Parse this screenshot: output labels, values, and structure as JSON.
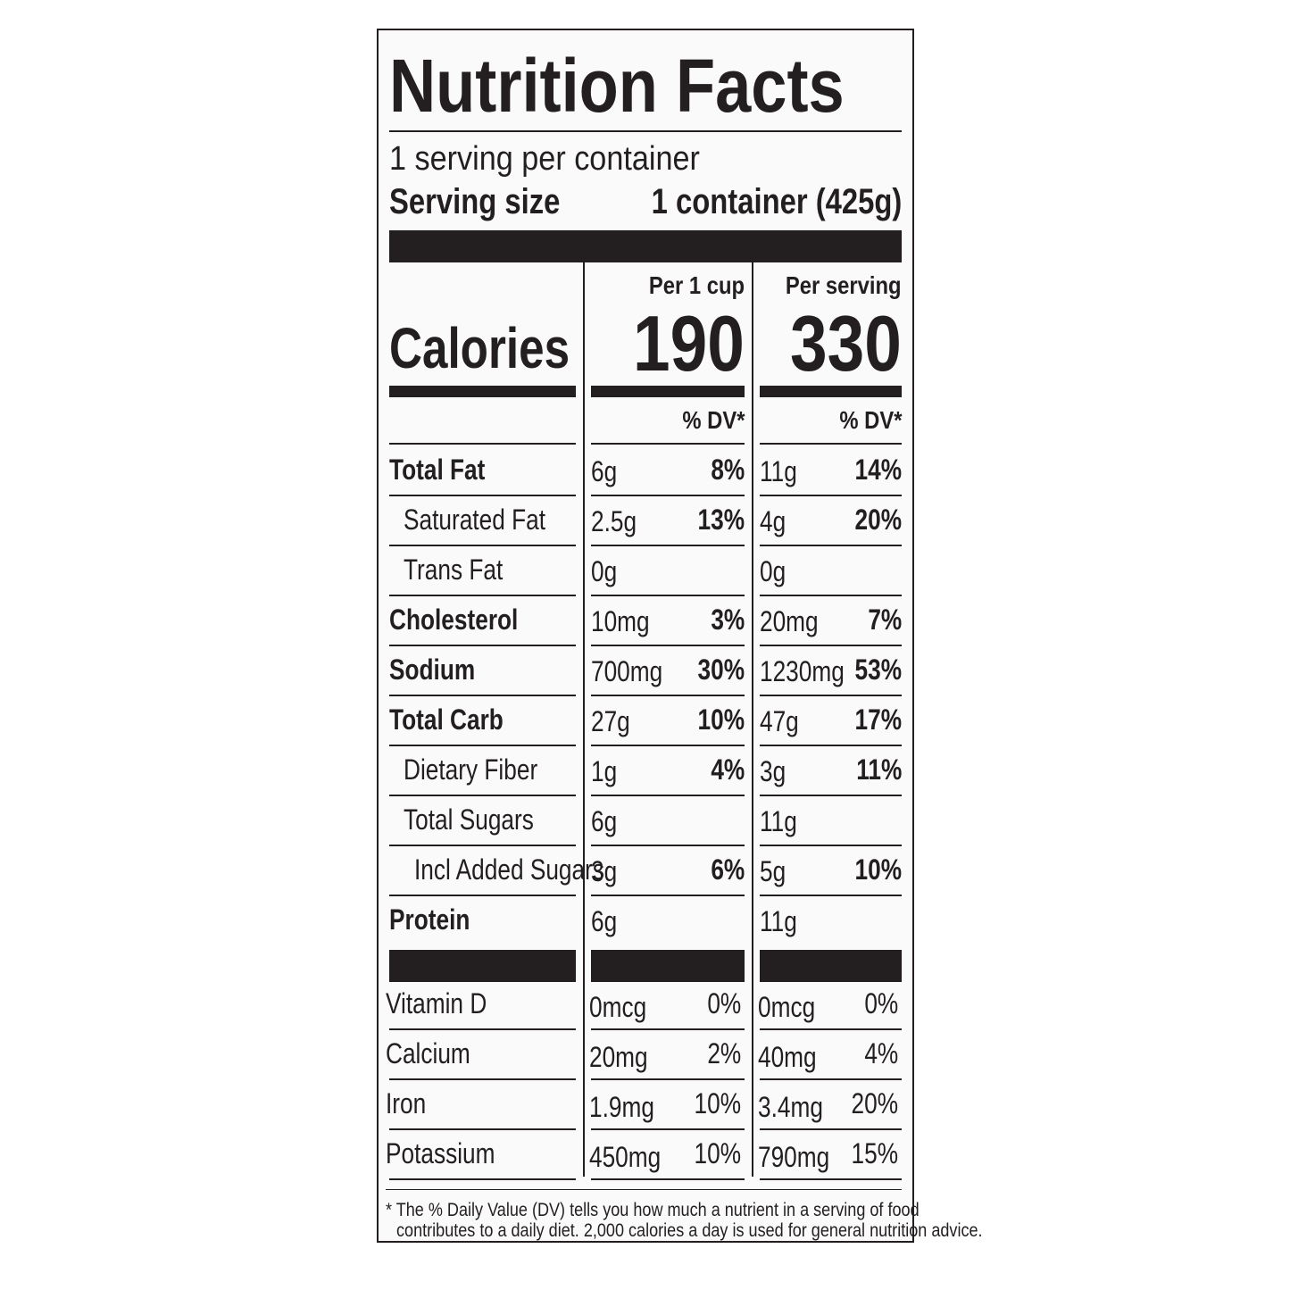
{
  "title": "Nutrition Facts",
  "servings": "1 serving per container",
  "serving_size": {
    "label": "Serving size",
    "value": "1 container (425g)"
  },
  "calories_label": "Calories",
  "columns": [
    {
      "header": "Per 1 cup",
      "calories": "190"
    },
    {
      "header": "Per serving",
      "calories": "330"
    }
  ],
  "dv_header": "% DV*",
  "nutrients": [
    {
      "name": "Total Fat",
      "bold": true,
      "indent": 0,
      "values": [
        {
          "amount": "6g",
          "dv": "8%"
        },
        {
          "amount": "11g",
          "dv": "14%"
        }
      ]
    },
    {
      "name": "Saturated Fat",
      "bold": false,
      "indent": 1,
      "values": [
        {
          "amount": "2.5g",
          "dv": "13%"
        },
        {
          "amount": "4g",
          "dv": "20%"
        }
      ]
    },
    {
      "name": "Trans Fat",
      "bold": false,
      "indent": 1,
      "values": [
        {
          "amount": "0g"
        },
        {
          "amount": "0g"
        }
      ]
    },
    {
      "name": "Cholesterol",
      "bold": true,
      "indent": 0,
      "values": [
        {
          "amount": "10mg",
          "dv": "3%"
        },
        {
          "amount": "20mg",
          "dv": "7%"
        }
      ]
    },
    {
      "name": "Sodium",
      "bold": true,
      "indent": 0,
      "values": [
        {
          "amount": "700mg",
          "dv": "30%"
        },
        {
          "amount": "1230mg",
          "dv": "53%"
        }
      ]
    },
    {
      "name": "Total Carb",
      "bold": true,
      "indent": 0,
      "values": [
        {
          "amount": "27g",
          "dv": "10%"
        },
        {
          "amount": "47g",
          "dv": "17%"
        }
      ]
    },
    {
      "name": "Dietary Fiber",
      "bold": false,
      "indent": 1,
      "values": [
        {
          "amount": "1g",
          "dv": "4%"
        },
        {
          "amount": "3g",
          "dv": "11%"
        }
      ]
    },
    {
      "name": "Total Sugars",
      "bold": false,
      "indent": 1,
      "values": [
        {
          "amount": "6g"
        },
        {
          "amount": "11g"
        }
      ]
    },
    {
      "name": "Incl Added Sugars",
      "bold": false,
      "indent": 2,
      "values": [
        {
          "amount": "3g",
          "dv": "6%"
        },
        {
          "amount": "5g",
          "dv": "10%"
        }
      ]
    },
    {
      "name": "Protein",
      "bold": true,
      "indent": 0,
      "values": [
        {
          "amount": "6g"
        },
        {
          "amount": "11g"
        }
      ]
    }
  ],
  "vitamins": [
    {
      "name": "Vitamin D",
      "values": [
        {
          "amount": "0mcg",
          "dv": "0%"
        },
        {
          "amount": "0mcg",
          "dv": "0%"
        }
      ]
    },
    {
      "name": "Calcium",
      "values": [
        {
          "amount": "20mg",
          "dv": "2%"
        },
        {
          "amount": "40mg",
          "dv": "4%"
        }
      ]
    },
    {
      "name": "Iron",
      "values": [
        {
          "amount": "1.9mg",
          "dv": "10%"
        },
        {
          "amount": "3.4mg",
          "dv": "20%"
        }
      ]
    },
    {
      "name": "Potassium",
      "values": [
        {
          "amount": "450mg",
          "dv": "10%"
        },
        {
          "amount": "790mg",
          "dv": "15%"
        }
      ]
    }
  ],
  "footnote": [
    "* The % Daily Value (DV) tells you how much a nutrient in a serving of food",
    "contributes to a daily diet. 2,000 calories a day is used for general nutrition advice."
  ]
}
